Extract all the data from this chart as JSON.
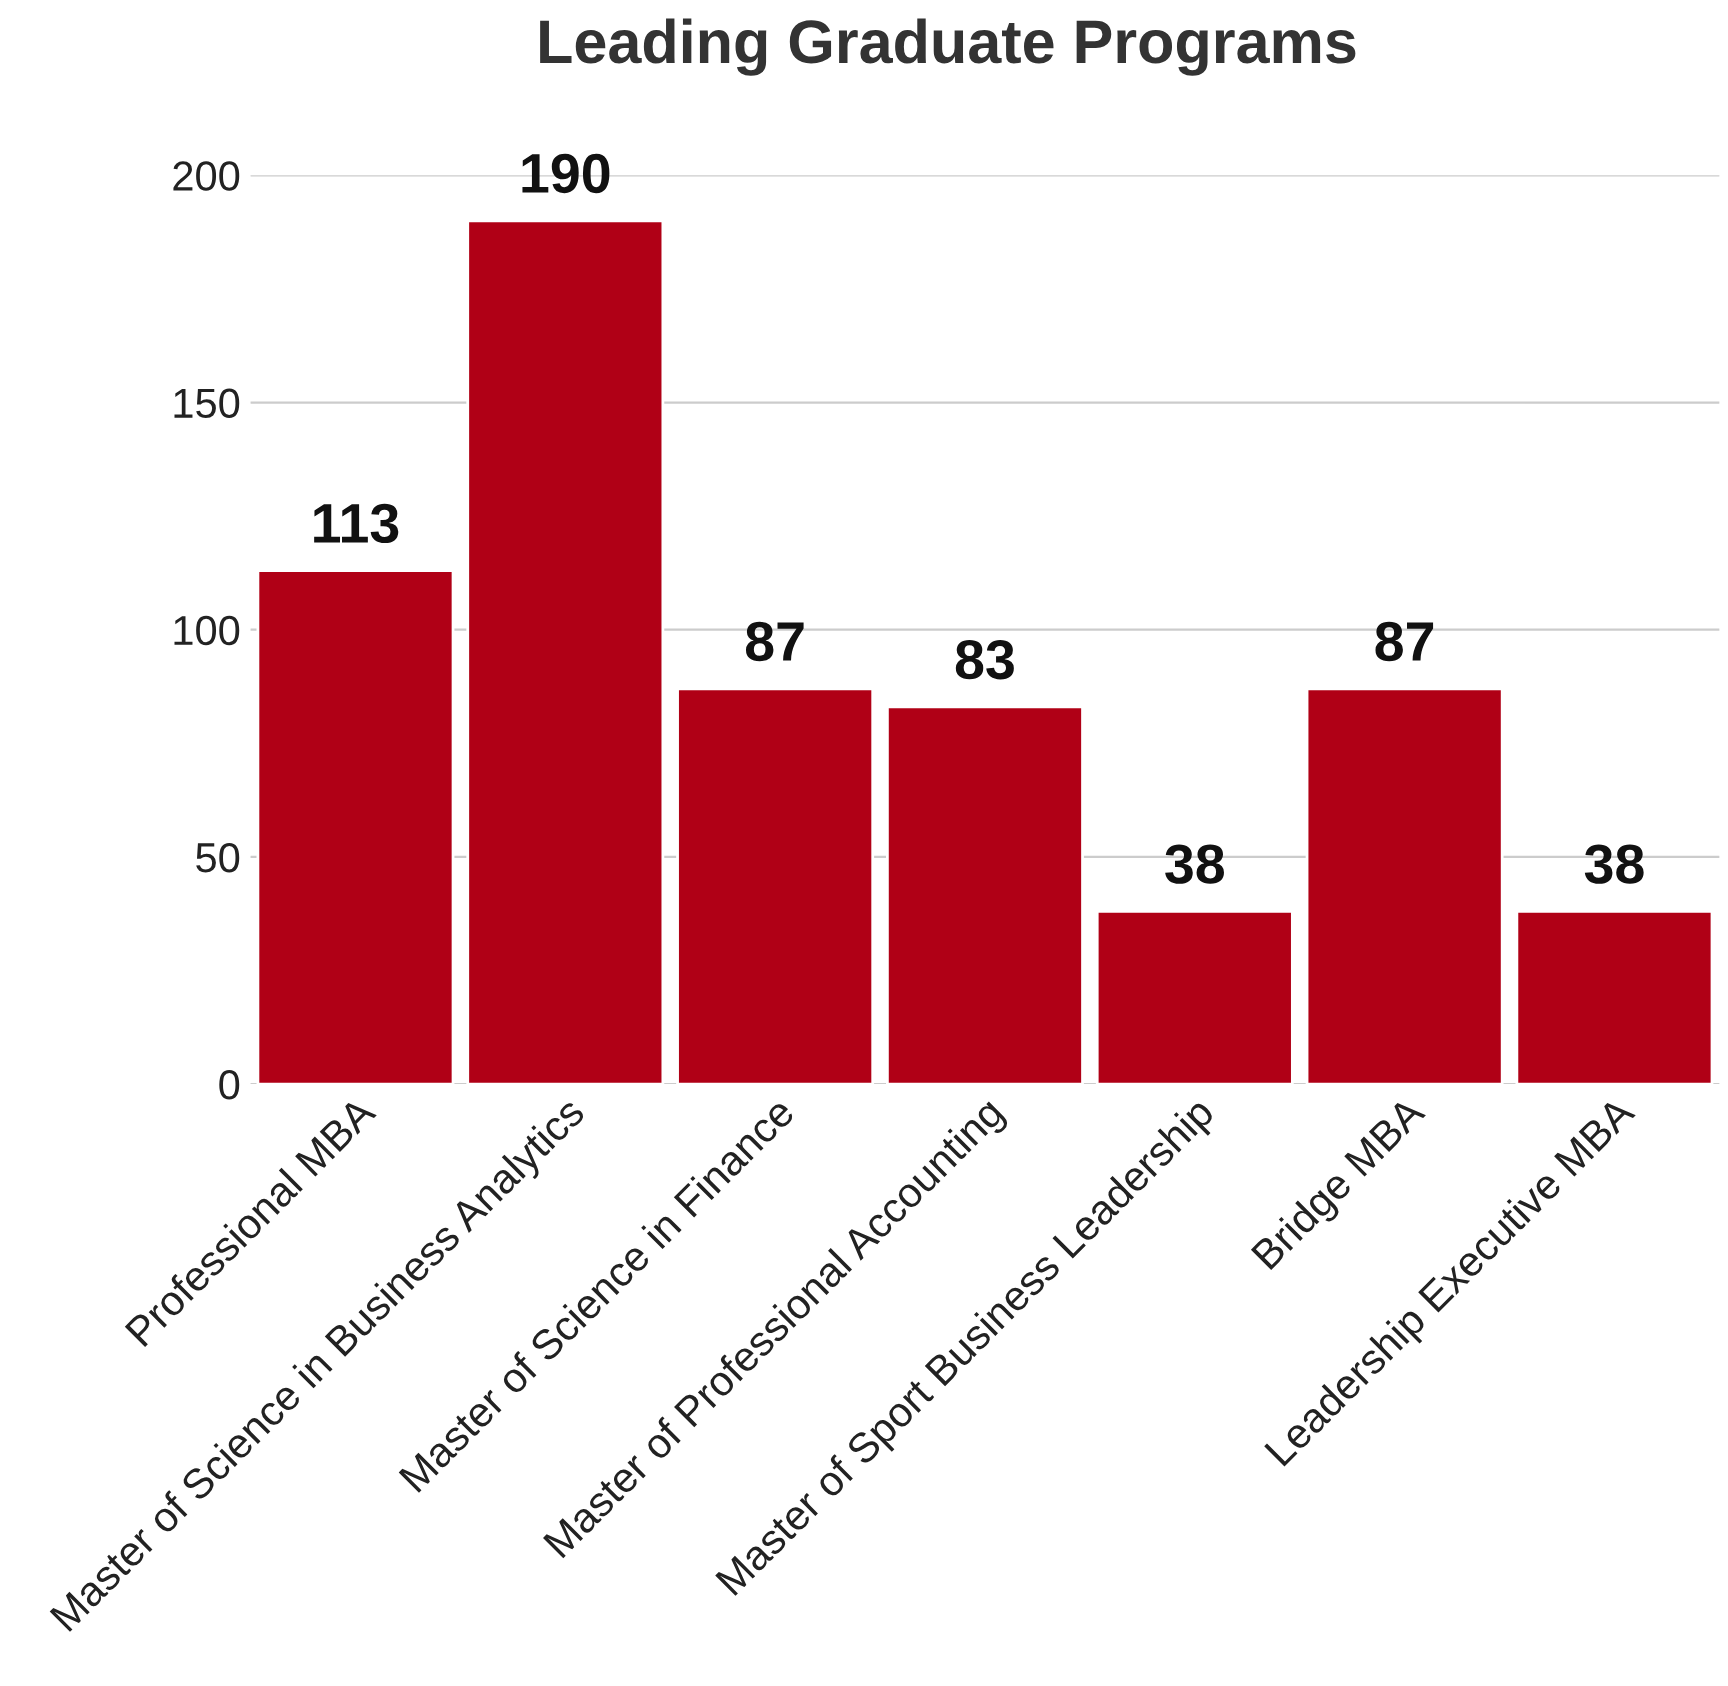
{
  "chart_data": {
    "type": "bar",
    "title": "Leading Graduate Programs",
    "categories": [
      "Professional MBA",
      "Master of Science in Business Analytics",
      "Master of Science in Finance",
      "Master of Professional Accounting",
      "Master of Sport Business Leadership",
      "Bridge MBA",
      "Leadership Executive MBA"
    ],
    "values": [
      113,
      190,
      87,
      83,
      38,
      87,
      38
    ],
    "color": "#b00016",
    "ylim": [
      0,
      200
    ],
    "yticks": [
      0,
      50,
      100,
      150,
      200
    ],
    "grid": "y",
    "data_labels": true
  }
}
